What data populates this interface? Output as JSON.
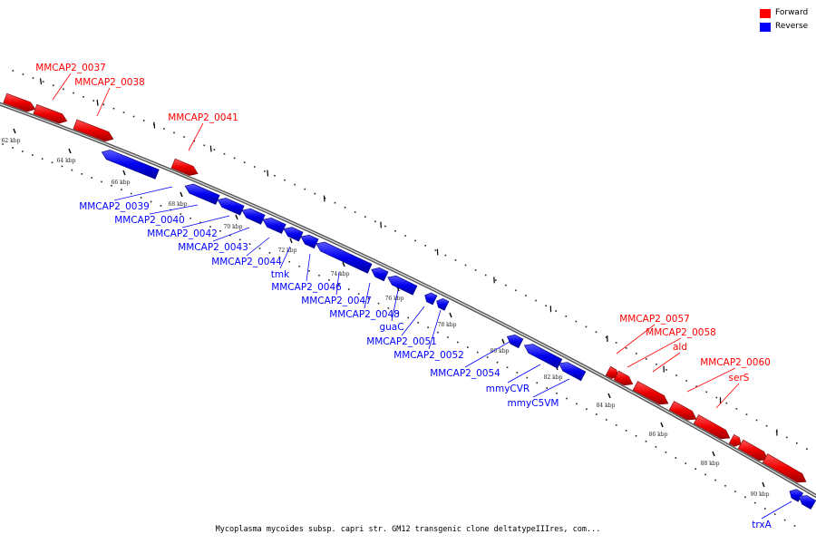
{
  "legend": [
    {
      "label": "Forward",
      "color": "#ff0000"
    },
    {
      "label": "Reverse",
      "color": "#0000ff"
    }
  ],
  "caption": "Mycoplasma mycoides subsp. capri str. GM12 transgenic clone deltatypeIIIres, com...",
  "ticks": [
    "62 kbp",
    "64 kbp",
    "66 kbp",
    "68 kbp",
    "70 kbp",
    "72 kbp",
    "74 kbp",
    "76 kbp",
    "78 kbp",
    "80 kbp",
    "82 kbp",
    "84 kbp",
    "86 kbp",
    "88 kbp",
    "90 kbp"
  ],
  "genes": [
    {
      "label": "MMCAP2_0037",
      "strand": "forward"
    },
    {
      "label": "MMCAP2_0038",
      "strand": "forward"
    },
    {
      "label": "MMCAP2_0041",
      "strand": "forward"
    },
    {
      "label": "MMCAP2_0039",
      "strand": "reverse"
    },
    {
      "label": "MMCAP2_0040",
      "strand": "reverse"
    },
    {
      "label": "MMCAP2_0042",
      "strand": "reverse"
    },
    {
      "label": "MMCAP2_0043",
      "strand": "reverse"
    },
    {
      "label": "MMCAP2_0044",
      "strand": "reverse"
    },
    {
      "label": "tmk",
      "strand": "reverse"
    },
    {
      "label": "MMCAP2_0046",
      "strand": "reverse"
    },
    {
      "label": "MMCAP2_0047",
      "strand": "reverse"
    },
    {
      "label": "MMCAP2_0048",
      "strand": "reverse"
    },
    {
      "label": "guaC",
      "strand": "reverse"
    },
    {
      "label": "MMCAP2_0051",
      "strand": "reverse"
    },
    {
      "label": "MMCAP2_0052",
      "strand": "reverse"
    },
    {
      "label": "MMCAP2_0054",
      "strand": "reverse"
    },
    {
      "label": "mmyCVR",
      "strand": "reverse"
    },
    {
      "label": "mmyC5VM",
      "strand": "reverse"
    },
    {
      "label": "MMCAP2_0057",
      "strand": "forward"
    },
    {
      "label": "MMCAP2_0058",
      "strand": "forward"
    },
    {
      "label": "ald",
      "strand": "forward"
    },
    {
      "label": "MMCAP2_0060",
      "strand": "forward"
    },
    {
      "label": "serS",
      "strand": "forward"
    },
    {
      "label": "trxA",
      "strand": "reverse"
    }
  ]
}
